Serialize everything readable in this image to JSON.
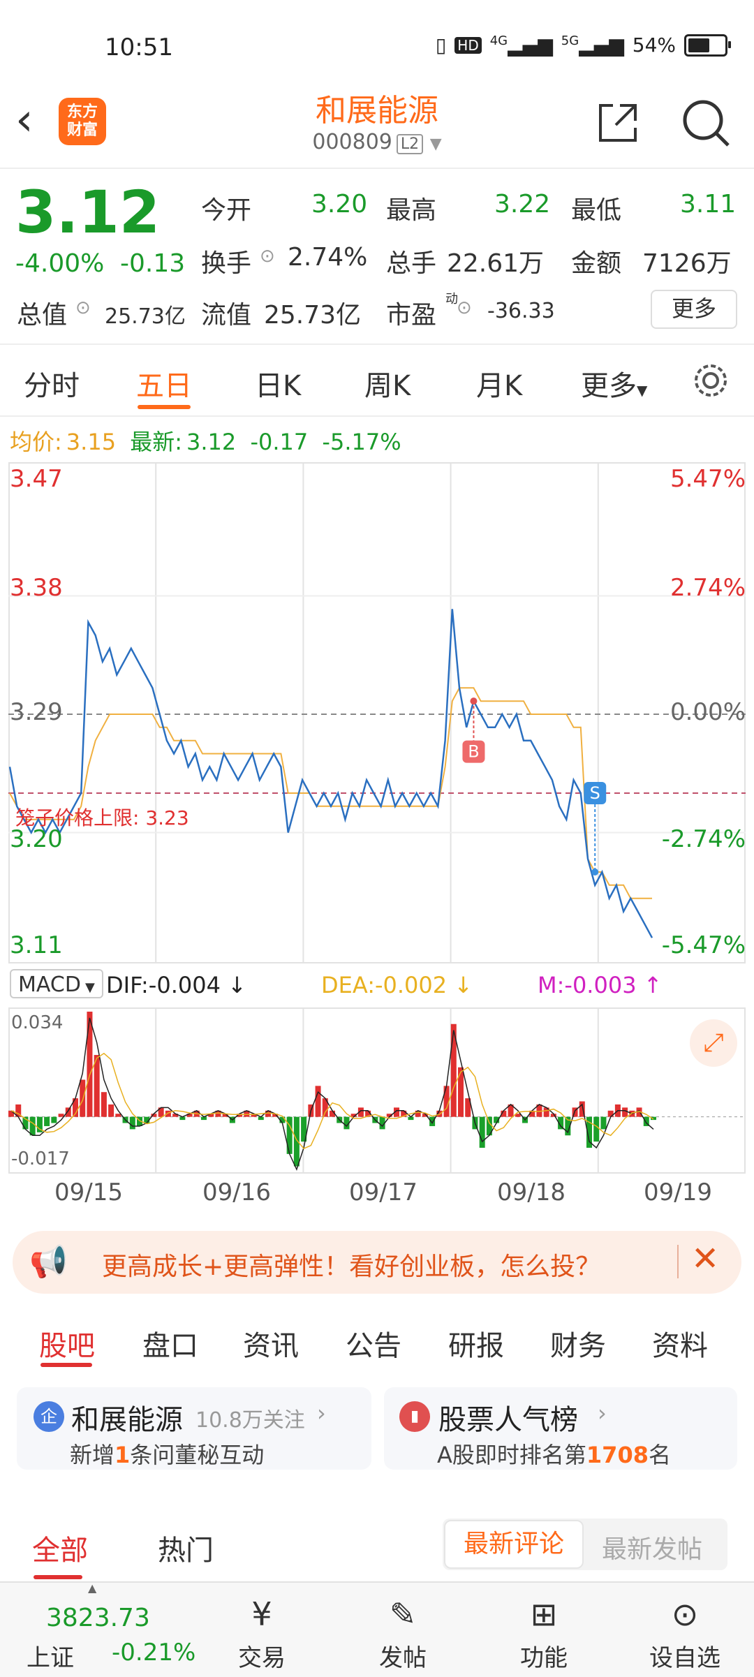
{
  "status_bar": {
    "time": "10:51",
    "net_4g": "4G",
    "net_5g": "5G",
    "hd": "HD",
    "battery": "54%",
    "battery_level": 0.54
  },
  "header": {
    "logo_line1": "东方",
    "logo_line2": "财富",
    "title": "和展能源",
    "code": "000809",
    "tag": "L2"
  },
  "quote": {
    "price": "3.12",
    "change_pct": "-4.00%",
    "change": "-0.13",
    "open_label": "今开",
    "open": "3.20",
    "high_label": "最高",
    "high": "3.22",
    "low_label": "最低",
    "low": "3.11",
    "turnover_label": "换手",
    "turnover": "2.74%",
    "volume_label": "总手",
    "volume": "22.61万",
    "amount_label": "金额",
    "amount": "7126万",
    "mktcap_label": "总值",
    "mktcap": "25.73亿",
    "float_label": "流值",
    "float": "25.73亿",
    "pe_label": "市盈",
    "pe_sup": "动",
    "pe": "-36.33",
    "more": "更多"
  },
  "tabs": [
    "分时",
    "五日",
    "日K",
    "周K",
    "月K",
    "更多"
  ],
  "active_tab": 1,
  "chart_info": {
    "avg_label": "均价:",
    "avg": "3.15",
    "latest_label": "最新:",
    "latest": "3.12",
    "latest_change": "-0.17",
    "latest_pct": "-5.17%"
  },
  "chart_data": {
    "type": "line",
    "y_left_ticks": [
      "3.47",
      "3.38",
      "3.29",
      "3.20",
      "3.11"
    ],
    "y_right_ticks": [
      "5.47%",
      "2.74%",
      "0.00%",
      "-2.74%",
      "-5.47%"
    ],
    "x_labels": [
      "09/15",
      "09/16",
      "09/17",
      "09/18",
      "09/19"
    ],
    "ylim": [
      3.11,
      3.47
    ],
    "ref_line": {
      "label": "笼子价格上限:",
      "value": "3.23"
    },
    "markers": [
      {
        "label": "B",
        "y": 3.3
      },
      {
        "label": "S",
        "y": 3.23
      }
    ],
    "price": [
      3.25,
      3.22,
      3.21,
      3.2,
      3.21,
      3.2,
      3.21,
      3.2,
      3.21,
      3.22,
      3.23,
      3.36,
      3.35,
      3.33,
      3.34,
      3.32,
      3.33,
      3.34,
      3.33,
      3.32,
      3.31,
      3.29,
      3.27,
      3.26,
      3.27,
      3.25,
      3.26,
      3.24,
      3.25,
      3.24,
      3.26,
      3.25,
      3.24,
      3.25,
      3.26,
      3.24,
      3.25,
      3.26,
      3.25,
      3.2,
      3.22,
      3.24,
      3.23,
      3.22,
      3.23,
      3.22,
      3.23,
      3.21,
      3.23,
      3.22,
      3.24,
      3.23,
      3.22,
      3.24,
      3.22,
      3.23,
      3.22,
      3.23,
      3.22,
      3.23,
      3.22,
      3.27,
      3.37,
      3.31,
      3.28,
      3.3,
      3.29,
      3.28,
      3.28,
      3.29,
      3.28,
      3.29,
      3.27,
      3.27,
      3.26,
      3.25,
      3.24,
      3.22,
      3.21,
      3.24,
      3.23,
      3.18,
      3.16,
      3.17,
      3.15,
      3.16,
      3.14,
      3.15,
      3.14,
      3.13,
      3.12
    ],
    "avg": [
      3.23,
      3.22,
      3.21,
      3.21,
      3.21,
      3.21,
      3.21,
      3.21,
      3.21,
      3.21,
      3.22,
      3.25,
      3.27,
      3.28,
      3.29,
      3.29,
      3.29,
      3.29,
      3.29,
      3.29,
      3.29,
      3.28,
      3.28,
      3.27,
      3.27,
      3.27,
      3.27,
      3.26,
      3.26,
      3.26,
      3.26,
      3.26,
      3.26,
      3.26,
      3.26,
      3.26,
      3.26,
      3.26,
      3.26,
      3.23,
      3.23,
      3.23,
      3.23,
      3.22,
      3.22,
      3.22,
      3.22,
      3.22,
      3.22,
      3.22,
      3.22,
      3.22,
      3.22,
      3.22,
      3.22,
      3.22,
      3.22,
      3.22,
      3.22,
      3.22,
      3.22,
      3.25,
      3.3,
      3.31,
      3.31,
      3.31,
      3.3,
      3.3,
      3.3,
      3.3,
      3.3,
      3.3,
      3.3,
      3.29,
      3.29,
      3.29,
      3.29,
      3.29,
      3.29,
      3.28,
      3.28,
      3.18,
      3.17,
      3.17,
      3.16,
      3.16,
      3.16,
      3.15,
      3.15,
      3.15,
      3.15
    ]
  },
  "macd": {
    "name": "MACD",
    "dif": "DIF:-0.004",
    "dea": "DEA:-0.002",
    "m": "M:-0.003",
    "ymax_label": "0.034",
    "ymin_label": "-0.017",
    "ylim": [
      -0.017,
      0.034
    ],
    "hist": [
      0.002,
      0.004,
      -0.004,
      -0.006,
      -0.005,
      -0.003,
      -0.002,
      0.001,
      0.003,
      0.006,
      0.012,
      0.034,
      0.02,
      0.008,
      0.004,
      0.001,
      -0.002,
      -0.004,
      -0.003,
      -0.002,
      0.001,
      0.003,
      0.002,
      0.001,
      -0.001,
      0.001,
      0.002,
      -0.001,
      0.001,
      0.002,
      0.001,
      -0.002,
      0.001,
      0.002,
      0.001,
      -0.001,
      0.002,
      0.001,
      -0.002,
      -0.012,
      -0.016,
      -0.008,
      0.004,
      0.01,
      0.006,
      0.002,
      -0.002,
      -0.004,
      0.001,
      0.003,
      0.002,
      -0.002,
      -0.004,
      0.001,
      0.003,
      0.002,
      -0.001,
      0.002,
      0.001,
      -0.003,
      0.002,
      0.01,
      0.03,
      0.016,
      0.006,
      -0.004,
      -0.01,
      -0.006,
      -0.002,
      0.002,
      0.004,
      0.001,
      -0.002,
      0.002,
      0.004,
      0.003,
      0.001,
      -0.004,
      -0.006,
      0.003,
      0.005,
      -0.01,
      -0.008,
      -0.004,
      0.002,
      0.004,
      0.003,
      0.002,
      0.003,
      -0.003,
      -0.001
    ],
    "dif_line": [
      0.002,
      0.0,
      -0.004,
      -0.006,
      -0.006,
      -0.004,
      -0.003,
      -0.001,
      0.002,
      0.006,
      0.014,
      0.032,
      0.024,
      0.012,
      0.006,
      0.002,
      -0.001,
      -0.003,
      -0.003,
      -0.002,
      0.001,
      0.003,
      0.003,
      0.001,
      0.0,
      0.001,
      0.002,
      0.0,
      0.001,
      0.002,
      0.001,
      -0.001,
      0.001,
      0.002,
      0.001,
      0.0,
      0.002,
      0.001,
      -0.002,
      -0.012,
      -0.017,
      -0.01,
      0.002,
      0.008,
      0.006,
      0.002,
      -0.001,
      -0.003,
      0.0,
      0.002,
      0.002,
      -0.001,
      -0.003,
      0.0,
      0.002,
      0.002,
      0.0,
      0.002,
      0.001,
      -0.002,
      0.002,
      0.01,
      0.028,
      0.018,
      0.008,
      -0.002,
      -0.008,
      -0.006,
      -0.002,
      0.002,
      0.004,
      0.002,
      -0.001,
      0.002,
      0.004,
      0.003,
      0.001,
      -0.003,
      -0.005,
      0.002,
      0.004,
      -0.008,
      -0.01,
      -0.006,
      0.0,
      0.002,
      0.002,
      0.001,
      0.002,
      -0.002,
      -0.004
    ]
  },
  "banner": {
    "text": "更高成长+更高弹性！看好创业板，怎么投？"
  },
  "bottom_tabs": [
    "股吧",
    "盘口",
    "资讯",
    "公告",
    "研报",
    "财务",
    "资料"
  ],
  "card_left": {
    "badge": "企",
    "title": "和展能源",
    "followers": "10.8万关注",
    "desc_a": "新增",
    "desc_num": "1",
    "desc_b": "条问董秘互动"
  },
  "card_right": {
    "title": "股票人气榜",
    "desc_a": "A股即时排名第",
    "desc_num": "1708",
    "desc_b": "名"
  },
  "feed_tabs": {
    "all": "全部",
    "hot": "热门",
    "latest_comment": "最新评论",
    "latest_post": "最新发帖"
  },
  "nav": {
    "index_value": "3823.73",
    "index_name": "上证",
    "index_change": "-0.21%",
    "items": [
      "交易",
      "发帖",
      "功能",
      "设自选"
    ]
  }
}
